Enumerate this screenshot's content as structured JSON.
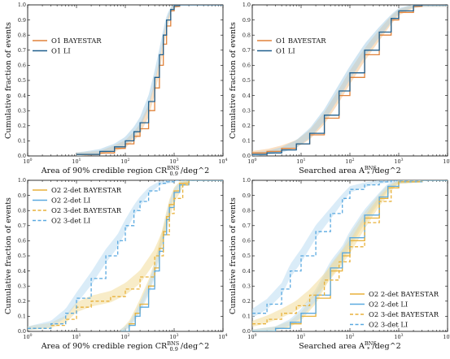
{
  "colors": {
    "o1_bayestar": "#e0823a",
    "o1_li": "#1f5f8e",
    "o2_bayestar": "#e8b13a",
    "o2_li": "#5aa9e0",
    "band_orange": "#f5c58f",
    "band_blue": "#a9cfe8",
    "band_yellow": "#f3dc9a",
    "band_lightblue": "#bcdcf3"
  },
  "chart_data": [
    {
      "type": "line",
      "xscale": "log",
      "xlim": [
        1,
        10000
      ],
      "ylim": [
        0,
        1
      ],
      "xlabel": "Area of 90% credible region CR^BNS_0.9 /deg^2",
      "ylabel": "Cumulative fraction of events",
      "xticks": [
        "10^0",
        "10^1",
        "10^2",
        "10^3",
        "10^4"
      ],
      "yticks": [
        "0.0",
        "0.1",
        "0.2",
        "0.3",
        "0.4",
        "0.5",
        "0.6",
        "0.7",
        "0.8",
        "0.9",
        "1.0"
      ],
      "legend": "upper-left",
      "series": [
        {
          "name": "O1 BAYESTAR",
          "style": "solid",
          "color_key": "o1_bayestar",
          "x": [
            10,
            30,
            60,
            100,
            150,
            200,
            300,
            400,
            500,
            600,
            700,
            850,
            1000,
            1300
          ],
          "y": [
            0.01,
            0.02,
            0.05,
            0.08,
            0.13,
            0.18,
            0.3,
            0.45,
            0.6,
            0.74,
            0.86,
            0.96,
            0.99,
            1.0
          ]
        },
        {
          "name": "O1 LI",
          "style": "solid",
          "color_key": "o1_li",
          "x": [
            10,
            30,
            60,
            100,
            150,
            200,
            300,
            400,
            500,
            600,
            700,
            850,
            1000,
            1300
          ],
          "y": [
            0.01,
            0.03,
            0.06,
            0.1,
            0.16,
            0.22,
            0.36,
            0.52,
            0.67,
            0.8,
            0.9,
            0.97,
            0.995,
            1.0
          ]
        }
      ]
    },
    {
      "type": "line",
      "xscale": "log",
      "xlim": [
        1,
        10000
      ],
      "ylim": [
        0,
        1
      ],
      "xlabel": "Searched area A^BNS_* /deg^2",
      "ylabel": "Cumulative fraction of events",
      "xticks": [
        "10^0",
        "10^1",
        "10^2",
        "10^3",
        "10^4"
      ],
      "yticks": [
        "0.0",
        "0.1",
        "0.2",
        "0.3",
        "0.4",
        "0.5",
        "0.6",
        "0.7",
        "0.8",
        "0.9",
        "1.0"
      ],
      "legend": "upper-left",
      "series": [
        {
          "name": "O1 BAYESTAR",
          "style": "solid",
          "color_key": "o1_bayestar",
          "x": [
            1,
            2,
            4,
            8,
            15,
            30,
            60,
            100,
            200,
            400,
            700,
            1000,
            2000,
            3000,
            10000
          ],
          "y": [
            0.02,
            0.03,
            0.05,
            0.08,
            0.14,
            0.25,
            0.4,
            0.52,
            0.67,
            0.8,
            0.9,
            0.95,
            0.99,
            1.0,
            1.0
          ]
        },
        {
          "name": "O1 LI",
          "style": "solid",
          "color_key": "o1_li",
          "x": [
            1,
            2,
            4,
            8,
            15,
            30,
            60,
            100,
            200,
            400,
            700,
            1000,
            2000,
            3000,
            10000
          ],
          "y": [
            0.01,
            0.02,
            0.04,
            0.08,
            0.15,
            0.27,
            0.43,
            0.55,
            0.7,
            0.82,
            0.91,
            0.96,
            0.995,
            1.0,
            1.0
          ]
        }
      ]
    },
    {
      "type": "line",
      "xscale": "log",
      "xlim": [
        1,
        10000
      ],
      "ylim": [
        0,
        1
      ],
      "xlabel": "Area of 90% credible region CR^BNS_0.9 /deg^2",
      "ylabel": "Cumulative fraction of events",
      "xticks": [
        "10^0",
        "10^1",
        "10^2",
        "10^3",
        "10^4"
      ],
      "yticks": [
        "0.0",
        "0.1",
        "0.2",
        "0.3",
        "0.4",
        "0.5",
        "0.6",
        "0.7",
        "0.8",
        "0.9",
        "1.0"
      ],
      "legend": "upper-left",
      "series": [
        {
          "name": "O2 2-det BAYESTAR",
          "style": "solid",
          "color_key": "o2_bayestar",
          "x": [
            80,
            120,
            160,
            200,
            300,
            400,
            500,
            600,
            700,
            800,
            1000,
            1300,
            2000
          ],
          "y": [
            0.0,
            0.05,
            0.12,
            0.18,
            0.3,
            0.42,
            0.55,
            0.66,
            0.76,
            0.84,
            0.93,
            0.98,
            1.0
          ]
        },
        {
          "name": "O2 2-det LI",
          "style": "solid",
          "color_key": "o2_li",
          "x": [
            80,
            120,
            160,
            200,
            300,
            400,
            500,
            600,
            700,
            800,
            1000,
            1300,
            2000
          ],
          "y": [
            0.0,
            0.04,
            0.1,
            0.16,
            0.28,
            0.4,
            0.53,
            0.64,
            0.74,
            0.82,
            0.92,
            0.97,
            1.0
          ]
        },
        {
          "name": "O2 3-det BAYESTAR",
          "style": "dashed",
          "color_key": "o2_bayestar",
          "x": [
            1,
            3,
            6,
            10,
            20,
            50,
            100,
            200,
            400,
            600,
            800,
            1000,
            1500,
            2000
          ],
          "y": [
            0.02,
            0.04,
            0.08,
            0.16,
            0.2,
            0.23,
            0.28,
            0.36,
            0.5,
            0.64,
            0.78,
            0.88,
            0.97,
            1.0
          ]
        },
        {
          "name": "O2 3-det LI",
          "style": "dashed",
          "color_key": "o2_li",
          "x": [
            1,
            3,
            6,
            10,
            20,
            40,
            70,
            100,
            150,
            200,
            300,
            500,
            700,
            1000
          ],
          "y": [
            0.02,
            0.05,
            0.12,
            0.22,
            0.35,
            0.5,
            0.6,
            0.7,
            0.8,
            0.86,
            0.93,
            0.98,
            0.99,
            1.0
          ]
        }
      ]
    },
    {
      "type": "line",
      "xscale": "log",
      "xlim": [
        1,
        10000
      ],
      "ylim": [
        0,
        1
      ],
      "xlabel": "Searched area A^BNS_* /deg^2",
      "ylabel": "Cumulative fraction of events",
      "xticks": [
        "10^0",
        "10^1",
        "10^2",
        "10^3",
        "10^4"
      ],
      "yticks": [
        "0.0",
        "0.1",
        "0.2",
        "0.3",
        "0.4",
        "0.5",
        "0.6",
        "0.7",
        "0.8",
        "0.9",
        "1.0"
      ],
      "legend": "lower-right",
      "series": [
        {
          "name": "O2 2-det BAYESTAR",
          "style": "solid",
          "color_key": "o2_bayestar",
          "x": [
            1,
            3,
            6,
            10,
            20,
            40,
            70,
            100,
            200,
            400,
            600,
            1000,
            3000
          ],
          "y": [
            0.0,
            0.02,
            0.05,
            0.1,
            0.22,
            0.4,
            0.5,
            0.6,
            0.75,
            0.88,
            0.95,
            0.99,
            1.0
          ]
        },
        {
          "name": "O2 2-det LI",
          "style": "solid",
          "color_key": "o2_li",
          "x": [
            1,
            3,
            6,
            10,
            20,
            40,
            70,
            100,
            200,
            400,
            600,
            1000,
            3000
          ],
          "y": [
            0.0,
            0.02,
            0.06,
            0.12,
            0.24,
            0.42,
            0.52,
            0.62,
            0.77,
            0.89,
            0.96,
            0.99,
            1.0
          ]
        },
        {
          "name": "O2 3-det BAYESTAR",
          "style": "dashed",
          "color_key": "o2_bayestar",
          "x": [
            1,
            2,
            4,
            8,
            15,
            30,
            60,
            100,
            200,
            400,
            700,
            1000,
            3000
          ],
          "y": [
            0.05,
            0.08,
            0.12,
            0.17,
            0.24,
            0.34,
            0.46,
            0.56,
            0.72,
            0.86,
            0.95,
            0.99,
            1.0
          ]
        },
        {
          "name": "O2 3-det LI",
          "style": "dashed",
          "color_key": "o2_li",
          "x": [
            1,
            2,
            4,
            6,
            10,
            20,
            40,
            70,
            100,
            200,
            400,
            700,
            1000
          ],
          "y": [
            0.12,
            0.18,
            0.28,
            0.4,
            0.5,
            0.66,
            0.78,
            0.88,
            0.94,
            0.97,
            0.99,
            1.0,
            1.0
          ]
        }
      ]
    }
  ]
}
